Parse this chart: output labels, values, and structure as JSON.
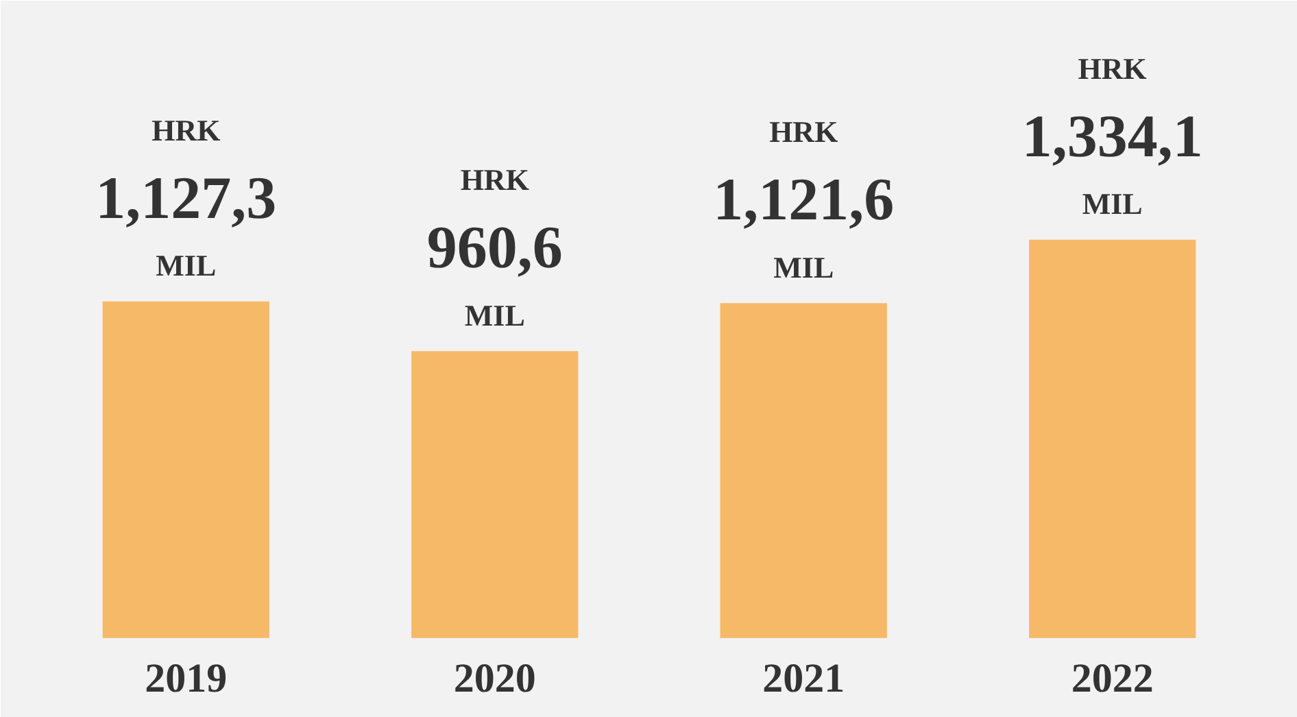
{
  "chart_data": {
    "type": "bar",
    "categories": [
      "2019",
      "2020",
      "2021",
      "2022"
    ],
    "values": [
      1127.3,
      960.6,
      1121.6,
      1334.1
    ],
    "color": "#f6b968",
    "value_labels": [
      "HRK 1,127,3 MIL",
      "HRK 960,6 MIL",
      "HRK 1,121,6 MIL",
      "HRK 1,334,1 MIL"
    ],
    "grid": false
  }
}
